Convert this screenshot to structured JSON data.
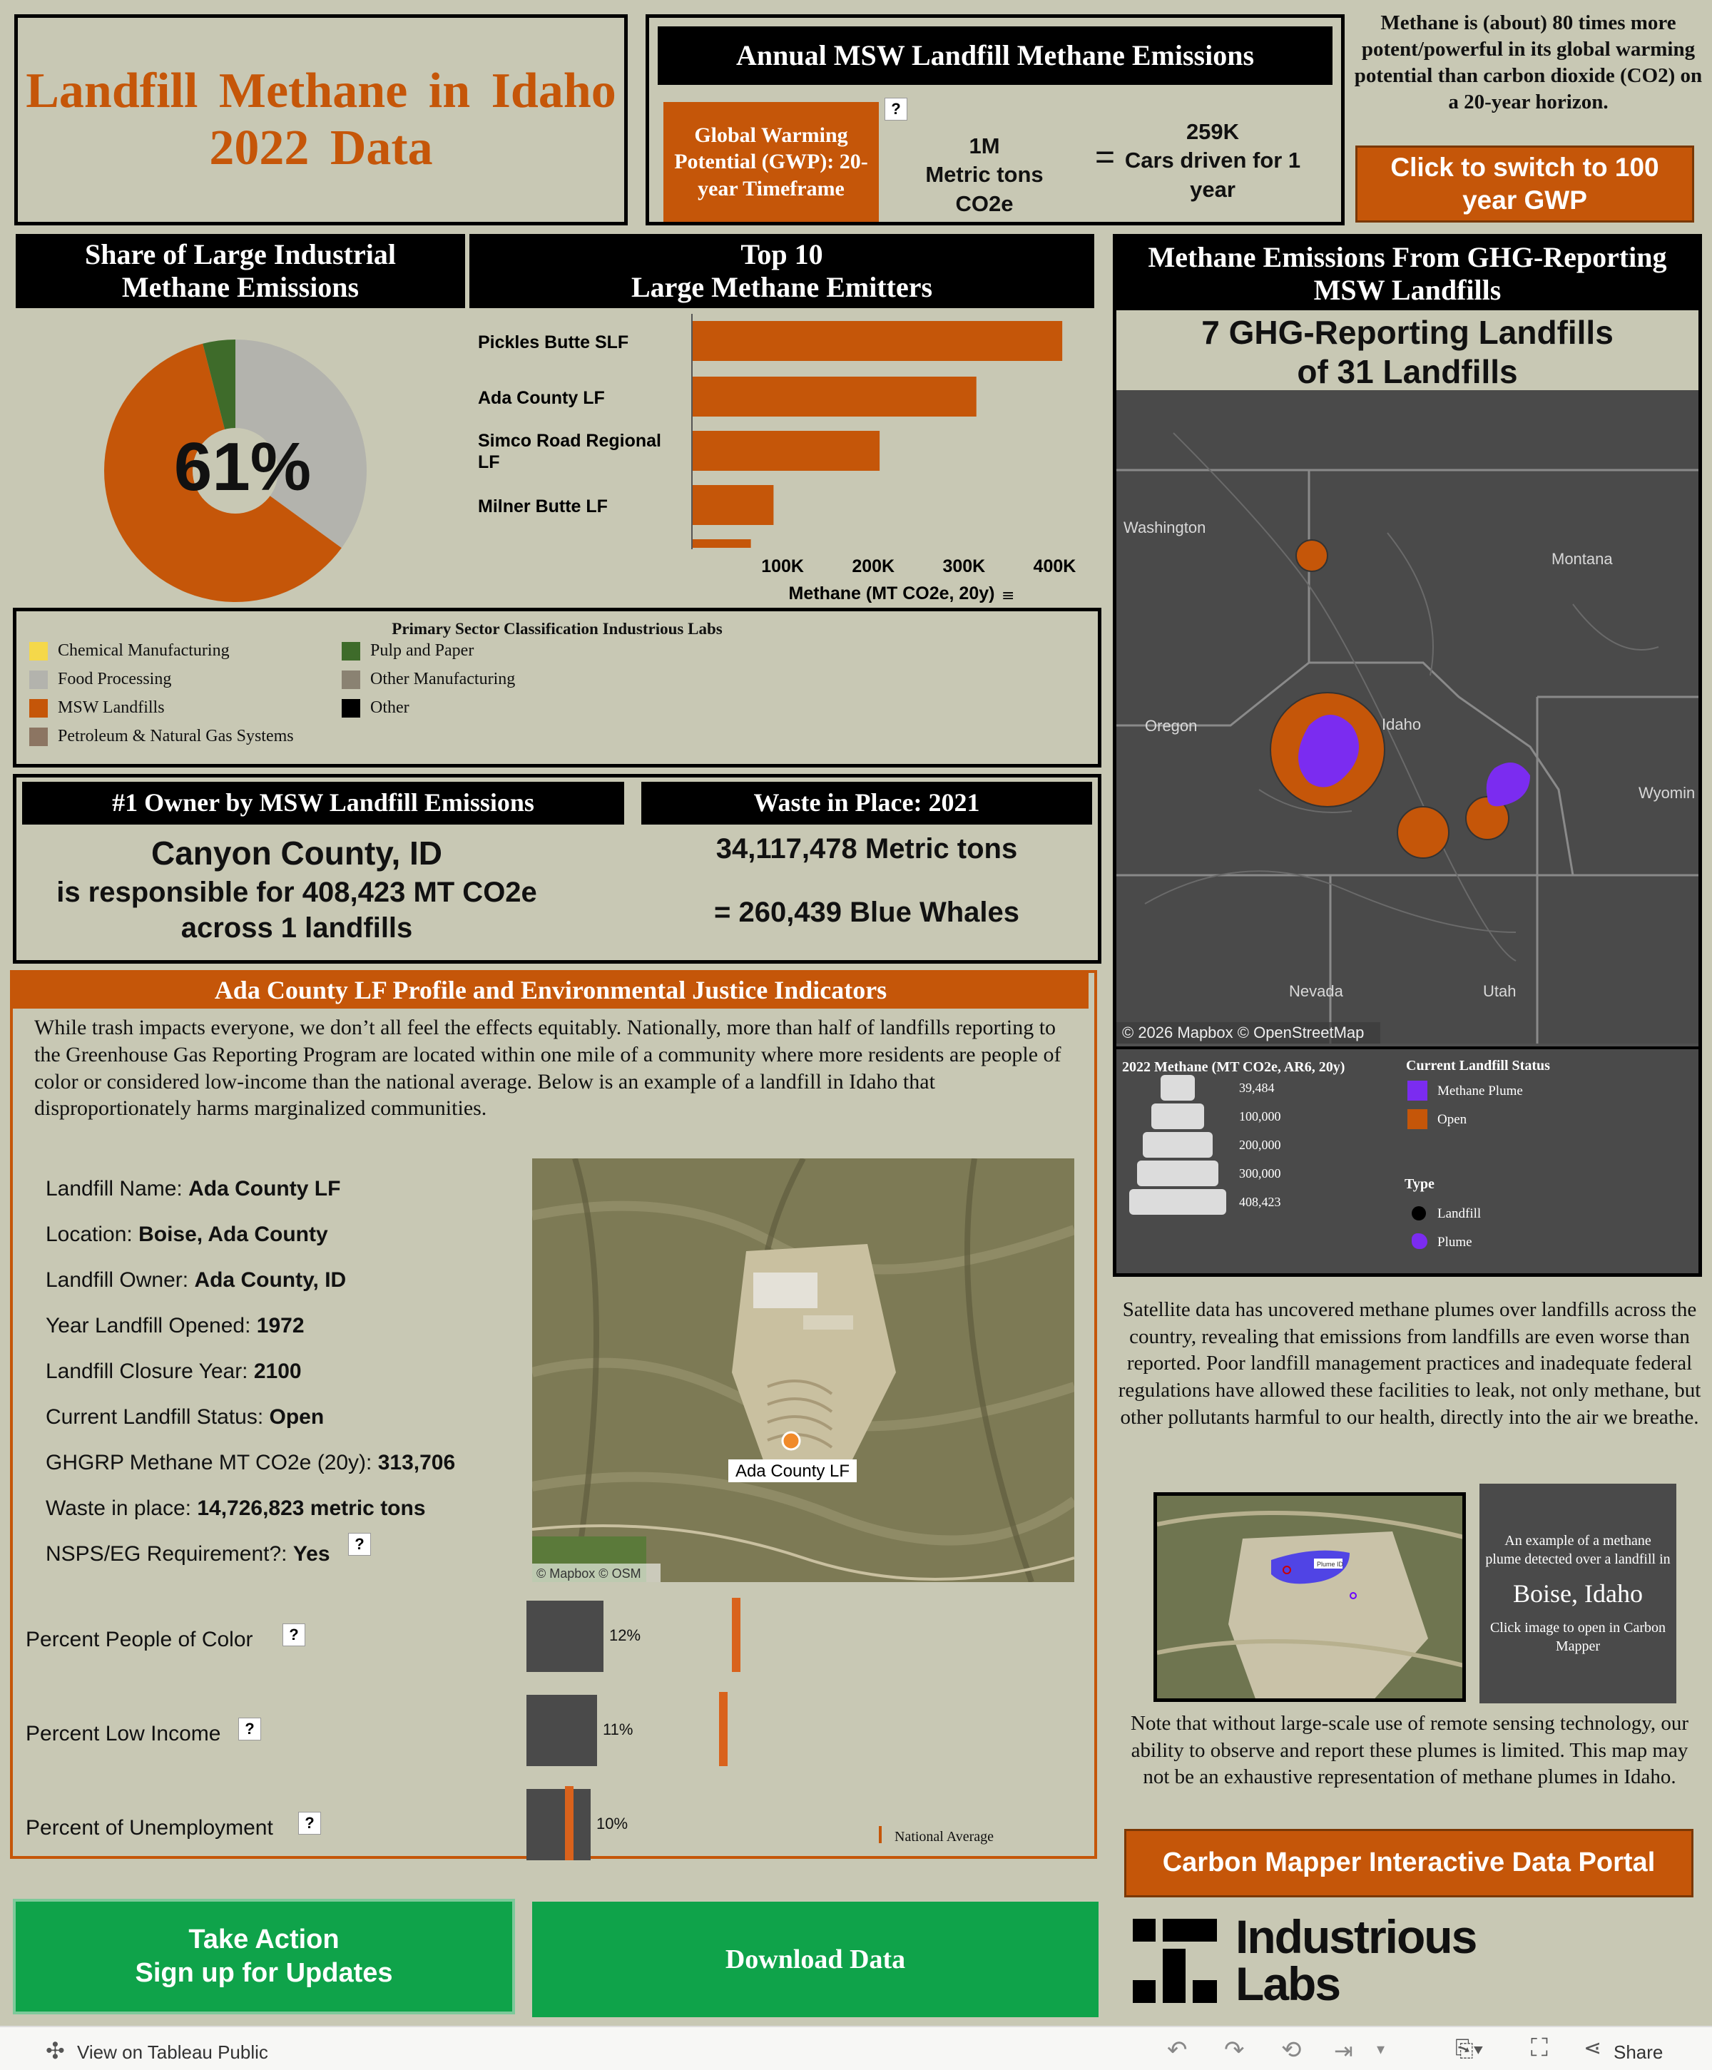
{
  "title": {
    "line1": "Landfill Methane in Idaho",
    "line2": "2022 Data"
  },
  "annual": {
    "header": "Annual MSW Landfill Methane Emissions",
    "gwp_label": "Global Warming Potential (GWP): 20-year Timeframe",
    "help": "?",
    "co2_value": "1M",
    "co2_unit": "Metric tons CO2e",
    "equals": "=",
    "cars_value": "259K",
    "cars_text": "Cars driven for 1 year"
  },
  "potency_note": "Methane is (about) 80 times more potent/powerful in its global warming potential than carbon dioxide (CO2) on a 20-year horizon.",
  "switch_button": "Click to switch to 100 year GWP",
  "share": {
    "header": "Share of Large Industrial Methane Emissions",
    "center_label": "61%"
  },
  "top10": {
    "header_line1": "Top 10",
    "header_line2": "Large Methane Emitters",
    "xlabel": "Methane (MT CO2e, 20y)"
  },
  "legend": {
    "title": "Primary Sector Classification Industrious Labs",
    "items": [
      {
        "label": "Chemical Manufacturing",
        "color": "#f5d84a"
      },
      {
        "label": "Food Processing",
        "color": "#b3b3ad"
      },
      {
        "label": "MSW Landfills",
        "color": "#c55609"
      },
      {
        "label": "Petroleum & Natural Gas Systems",
        "color": "#8c7562"
      },
      {
        "label": "Pulp and Paper",
        "color": "#3e6b2a"
      },
      {
        "label": "Other Manufacturing",
        "color": "#8a8272"
      },
      {
        "label": "Other",
        "color": "#000000"
      }
    ]
  },
  "owner": {
    "header": "#1 Owner by MSW Landfill Emissions",
    "line1": "Canyon County, ID",
    "line2": "is responsible for 408,423 MT CO2e",
    "line3": "across 1 landfills"
  },
  "waste": {
    "header": "Waste in Place: 2021",
    "line1": "34,117,478 Metric tons",
    "line2": "= 260,439 Blue Whales"
  },
  "map": {
    "header": "Methane Emissions From GHG-Reporting MSW Landfills",
    "subtitle_line1": "7 GHG-Reporting Landfills",
    "subtitle_line2": "of 31 Landfills",
    "states": {
      "washington": "Washington",
      "montana": "Montana",
      "oregon": "Oregon",
      "idaho": "Idaho",
      "wyoming": "Wyomin",
      "nevada": "Nevada",
      "utah": "Utah"
    },
    "attribution": "© 2026 Mapbox  © OpenStreetMap",
    "size_legend_title": "2022 Methane (MT CO2e, AR6, 20y)",
    "size_values": [
      "39,484",
      "100,000",
      "200,000",
      "300,000",
      "408,423"
    ],
    "status_title": "Current Landfill Status",
    "status_items": [
      "Methane Plume",
      "Open"
    ],
    "type_title": "Type",
    "type_items": [
      "Landfill",
      "Plume"
    ]
  },
  "profile": {
    "header": "Ada County LF Profile and Environmental Justice Indicators",
    "intro": "While trash impacts everyone, we don’t all feel the effects equitably. Nationally, more than half of landfills reporting to the Greenhouse Gas Reporting Program are located within one mile of a community where more residents are people of color or considered low-income than the national average. Below is an example of a landfill in Idaho that disproportionately harms marginalized communities.",
    "fields": [
      {
        "label": "Landfill Name: ",
        "value": "Ada County LF"
      },
      {
        "label": "Location: ",
        "value": "Boise, Ada County"
      },
      {
        "label": "Landfill Owner: ",
        "value": "Ada County, ID"
      },
      {
        "label": "Year Landfill Opened: ",
        "value": "1972"
      },
      {
        "label": "Landfill Closure Year: ",
        "value": "2100"
      },
      {
        "label": "Current Landfill Status: ",
        "value": "Open"
      },
      {
        "label": "GHGRP Methane MT CO2e (20y): ",
        "value": "313,706"
      },
      {
        "label": "Waste in place: ",
        "value": "14,726,823 metric tons"
      },
      {
        "label": "NSPS/EG Requirement?: ",
        "value": "Yes"
      }
    ],
    "sat_label": "Ada County LF",
    "sat_attribution": "© Mapbox  © OSM",
    "indicators": [
      {
        "label": "Percent People of Color",
        "value_label": "12%",
        "value": 12,
        "national": 32
      },
      {
        "label": "Percent Low Income",
        "value_label": "11%",
        "value": 11,
        "national": 30
      },
      {
        "label": "Percent of Unemployment",
        "value_label": "10%",
        "value": 10,
        "national": 6
      }
    ],
    "national_label": "National Average"
  },
  "satellite_note": "Satellite data has uncovered methane plumes over landfills across the country, revealing that emissions from landfills are even worse than reported. Poor landfill management practices and inadequate federal regulations have allowed these facilities to leak, not only methane, but other pollutants harmful to our health, directly into the air we breathe.",
  "plume_card": {
    "line1": "An example of a methane plume detected over a landfill in",
    "city": "Boise, Idaho",
    "line2": "Click image to open in Carbon Mapper",
    "tag": "Plume ID"
  },
  "remote_note": "Note that without large-scale use of remote sensing technology, our ability to observe and report these plumes is limited. This map may not be an exhaustive representation of methane plumes in Idaho.",
  "portal_button": "Carbon Mapper Interactive Data Portal",
  "action_button": {
    "line1": "Take Action",
    "line2": "Sign up for Updates"
  },
  "download_button": "Download Data",
  "logo": {
    "line1": "Industrious",
    "line2": "Labs"
  },
  "footer": {
    "view_label": "View on Tableau Public",
    "share_label": "Share"
  },
  "colors": {
    "orange": "#c55609",
    "green": "#0fa34a",
    "purple": "#7b2cf0",
    "background": "#c8c8b4"
  },
  "chart_data": [
    {
      "type": "pie",
      "title": "Share of Large Industrial Methane Emissions",
      "center_label": "61%",
      "slices": [
        {
          "label": "MSW Landfills",
          "value": 61
        },
        {
          "label": "Food Processing",
          "value": 35
        },
        {
          "label": "Pulp and Paper",
          "value": 4
        }
      ]
    },
    {
      "type": "bar",
      "orientation": "horizontal",
      "title": "Top 10 Large Methane Emitters",
      "categories": [
        "Pickles Butte SLF",
        "Ada County LF",
        "Simco Road Regional LF",
        "Milner Butte LF",
        ""
      ],
      "values": [
        408423,
        313706,
        207000,
        90000,
        65000
      ],
      "xlabel": "Methane (MT CO2e, 20y)",
      "xticks": [
        "100K",
        "200K",
        "300K",
        "400K"
      ],
      "xlim": [
        0,
        450000
      ]
    },
    {
      "type": "bar",
      "orientation": "horizontal",
      "title": "Environmental Justice Indicators",
      "categories": [
        "Percent People of Color",
        "Percent Low Income",
        "Percent of Unemployment"
      ],
      "values": [
        12,
        11,
        10
      ],
      "reference": {
        "label": "National Average",
        "values": [
          32,
          30,
          6
        ]
      }
    }
  ]
}
